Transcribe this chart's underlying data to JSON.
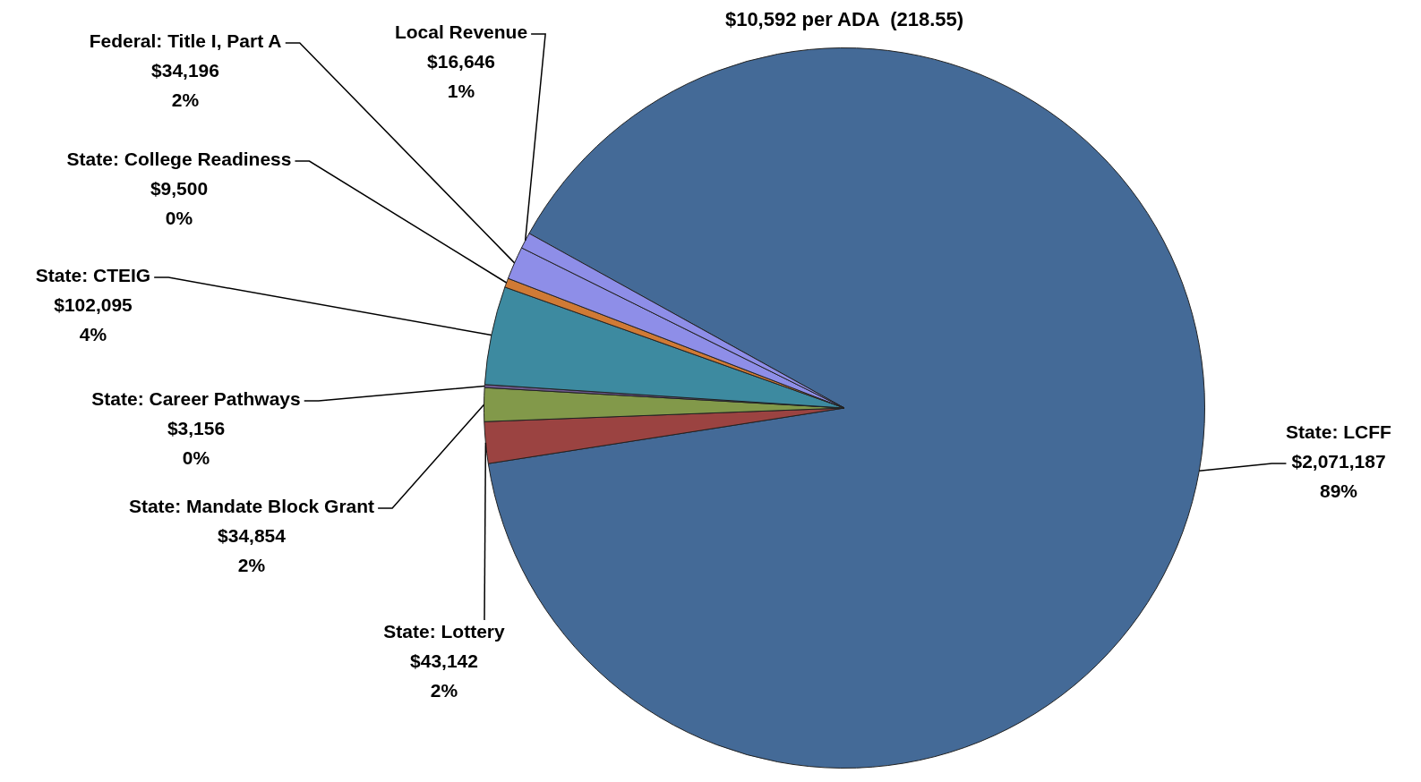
{
  "chart_data": {
    "type": "pie",
    "title": "$10,592 per ADA  (218.55)",
    "categories": [
      "State: LCFF",
      "State: Lottery",
      "State: Mandate Block Grant",
      "State: Career Pathways",
      "State: CTEIG",
      "State: College Readiness",
      "Federal: Title I, Part A",
      "Local Revenue"
    ],
    "values": [
      2071187,
      43142,
      34854,
      3156,
      102095,
      9500,
      34196,
      16646
    ],
    "value_labels": [
      "$2,071,187\n89%",
      "$43,142\n2%",
      "$34,854\n2%",
      "$3,156\n0%",
      "$102,095\n4%",
      "$9,500\n0%",
      "$34,196\n2%",
      "$16,646\n1%"
    ],
    "colors": [
      "#446a97",
      "#9b4341",
      "#82994a",
      "#6e5a8e",
      "#3d8aa0",
      "#d07a35",
      "#8e8ee8",
      "#8e8ee8"
    ],
    "legend": false
  }
}
